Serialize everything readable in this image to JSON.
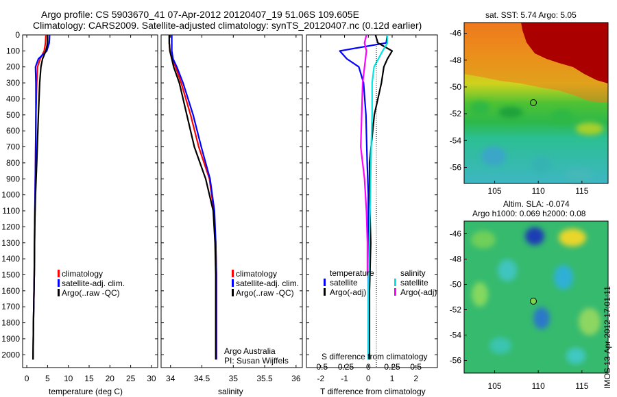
{
  "figure": {
    "title_line1": "Argo profile: CS 5903670_41 07-Apr-2012 20120407_19 51.06S 109.605E",
    "title_line2": "Climatology: CARS2009. Satellite-adjusted climatology: synTS_20120407.nc (0.12d earlier)"
  },
  "legend": {
    "climatology": "climatology",
    "satellite_adj": "satellite-adj. clim.",
    "argo": "Argo(..raw -QC)",
    "temperature_heading": "temperature",
    "salinity_heading": "salinity",
    "satellite": "satellite",
    "argo_adj": "Argo(-adj)"
  },
  "annotation": {
    "program": "Argo Australia",
    "pi": "PI: Susan Wijffels",
    "timestamp": "IMOS 13-Apr-2012 17:01:11"
  },
  "maps": {
    "sst": {
      "title": "sat. SST: 5.74  Argo: 5.05",
      "xticks": [
        105,
        110,
        115
      ],
      "xlim": [
        101.5,
        118
      ],
      "yticks": [
        -46,
        -48,
        -50,
        -52,
        -54,
        -56
      ],
      "ylim": [
        -57.2,
        -45.2
      ],
      "argo_lon": 109.605,
      "argo_lat": -51.06
    },
    "sla": {
      "title_line1": "Altim. SLA: -0.074",
      "title_line2": "Argo h1000: 0.069 h2000: 0.08",
      "xticks": [
        105,
        110,
        115
      ],
      "xlim": [
        101.5,
        118
      ],
      "yticks": [
        -46,
        -48,
        -50,
        -52,
        -54,
        -56
      ],
      "ylim": [
        -57.0,
        -45.0
      ],
      "argo_lon": 109.605,
      "argo_lat": -51.06
    },
    "colors": {
      "warm": "#aa0000",
      "orange": "#ef7a1a",
      "green": "#2eb845",
      "cyan": "#40c4bf",
      "blue": "#1a3cb4",
      "yellow": "#e9d62a"
    }
  },
  "chart_data": [
    {
      "type": "line",
      "xlabel": "temperature (deg C)",
      "ylabel": "",
      "xlim": [
        -1,
        31.5
      ],
      "ylim": [
        2080,
        0
      ],
      "xticks": [
        0,
        5,
        10,
        15,
        20,
        25,
        30
      ],
      "yticks": [
        0,
        100,
        200,
        300,
        400,
        500,
        600,
        700,
        800,
        900,
        1000,
        1100,
        1200,
        1300,
        1400,
        1500,
        1600,
        1700,
        1800,
        1900,
        2000
      ],
      "grid": false,
      "legend_position": "lower-middle",
      "series": [
        {
          "name": "climatology",
          "color": "#ff0000",
          "x": [
            4.6,
            4.5,
            4.2,
            3.2,
            2.6,
            2.4,
            2.2,
            2.1,
            2.0,
            1.9,
            1.8,
            1.6,
            1.5
          ],
          "y": [
            0,
            50,
            100,
            150,
            200,
            300,
            500,
            800,
            1000,
            1200,
            1500,
            1800,
            2030
          ]
        },
        {
          "name": "satellite-adj. clim.",
          "color": "#0000ff",
          "x": [
            5.5,
            5.4,
            4.8,
            2.8,
            2.1,
            2.2,
            2.2,
            2.1,
            2.0,
            1.9,
            1.8,
            1.6,
            1.5
          ],
          "y": [
            0,
            50,
            100,
            150,
            200,
            300,
            500,
            800,
            1000,
            1200,
            1500,
            1800,
            2030
          ]
        },
        {
          "name": "Argo(..raw -QC)",
          "color": "#000000",
          "x": [
            5.0,
            5.0,
            4.6,
            3.8,
            3.4,
            3.1,
            2.8,
            2.4,
            2.1,
            1.9,
            1.8,
            1.6,
            1.5
          ],
          "y": [
            0,
            50,
            100,
            150,
            200,
            300,
            500,
            800,
            1000,
            1200,
            1500,
            1800,
            2030
          ]
        }
      ]
    },
    {
      "type": "line",
      "xlabel": "salinity",
      "ylabel": "",
      "xlim": [
        33.85,
        36.1
      ],
      "ylim": [
        2080,
        0
      ],
      "xticks": [
        34,
        34.5,
        35,
        35.5,
        36
      ],
      "xticklabels": [
        "34",
        "34.5",
        "35",
        "35.5",
        "36"
      ],
      "grid": false,
      "legend_position": "lower-middle",
      "series": [
        {
          "name": "climatology",
          "color": "#ff0000",
          "x": [
            33.98,
            33.98,
            33.99,
            34.02,
            34.08,
            34.17,
            34.32,
            34.45,
            34.62,
            34.69,
            34.72,
            34.73,
            34.73,
            34.73
          ],
          "y": [
            0,
            50,
            100,
            150,
            200,
            300,
            500,
            700,
            900,
            1100,
            1300,
            1500,
            1800,
            2030
          ]
        },
        {
          "name": "satellite-adj. clim.",
          "color": "#0000ff",
          "x": [
            34.02,
            34.02,
            34.02,
            34.04,
            34.1,
            34.2,
            34.36,
            34.49,
            34.63,
            34.7,
            34.72,
            34.73,
            34.73,
            34.73
          ],
          "y": [
            0,
            50,
            100,
            150,
            200,
            300,
            500,
            700,
            900,
            1100,
            1300,
            1500,
            1800,
            2030
          ]
        },
        {
          "name": "Argo(..raw -QC)",
          "color": "#000000",
          "x": [
            33.98,
            33.98,
            33.99,
            34.02,
            34.05,
            34.14,
            34.26,
            34.38,
            34.56,
            34.68,
            34.71,
            34.72,
            34.72,
            34.72
          ],
          "y": [
            0,
            50,
            100,
            150,
            200,
            300,
            500,
            700,
            900,
            1100,
            1300,
            1500,
            1800,
            2030
          ]
        }
      ]
    },
    {
      "type": "line",
      "xlabel": "T difference from climatology",
      "x2label": "S difference from climatology",
      "ylabel": "",
      "xlim": [
        -2.6,
        2.9
      ],
      "ylim": [
        2080,
        0
      ],
      "xticks": [
        -2,
        -1,
        0,
        1,
        2
      ],
      "x2lim": [
        -0.65,
        0.725
      ],
      "x2ticks": [
        -0.5,
        -0.25,
        0,
        0.25,
        0.5
      ],
      "x2ticklabels": [
        "-0.5",
        "-0.25",
        "0",
        "0.25",
        "0.5"
      ],
      "grid": false,
      "legend_position": "lower-middle",
      "series": [
        {
          "name": "satellite",
          "group": "temperature",
          "axis": "x",
          "color": "#0000ff",
          "x": [
            0.8,
            0.75,
            -1.2,
            -0.9,
            -0.4,
            -0.2,
            -0.1,
            -0.05,
            0.0,
            0.0,
            0.0,
            0.0
          ],
          "y": [
            0,
            50,
            100,
            150,
            200,
            300,
            500,
            800,
            1000,
            1300,
            1600,
            2030
          ]
        },
        {
          "name": "Argo(-adj)",
          "group": "temperature",
          "axis": "x",
          "color": "#000000",
          "x": [
            0.3,
            0.4,
            1.0,
            0.8,
            0.65,
            0.55,
            0.25,
            0.05,
            0.05,
            0.1,
            0.05,
            0.05
          ],
          "y": [
            0,
            50,
            100,
            150,
            200,
            300,
            500,
            800,
            1000,
            1300,
            1600,
            2030
          ]
        },
        {
          "name": "satellite",
          "group": "salinity",
          "axis": "x2",
          "color": "#00e5e5",
          "x": [
            0.2,
            0.2,
            0.15,
            0.06,
            0.04,
            0.04,
            0.03,
            0.02,
            0.01,
            0.0,
            0.0
          ],
          "y": [
            0,
            50,
            100,
            200,
            300,
            500,
            700,
            1000,
            1300,
            1600,
            2030
          ]
        },
        {
          "name": "Argo(-adj)",
          "group": "salinity",
          "axis": "x2",
          "color": "#ff00ff",
          "x": [
            -0.02,
            -0.04,
            -0.02,
            -0.04,
            -0.06,
            -0.07,
            -0.08,
            -0.04,
            -0.02,
            -0.01,
            -0.01
          ],
          "y": [
            0,
            50,
            100,
            200,
            300,
            500,
            700,
            900,
            1100,
            1300,
            1500
          ]
        }
      ]
    }
  ]
}
